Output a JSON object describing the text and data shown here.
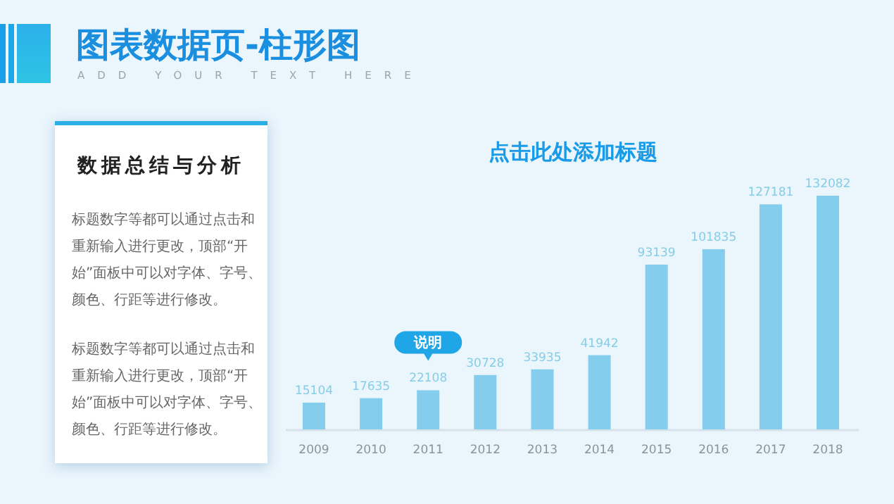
{
  "chart_data": [
    {
      "type": "other",
      "title": "图表数据页-柱形图",
      "subtitle": "ADD YOUR TEXT HERE"
    },
    {
      "type": "other",
      "title": "数据总结与分析",
      "annotations": [
        "标题数字等都可以通过点击和重新输入进行更改，顶部“开始”面板中可以对字体、字号、颜色、行距等进行修改。",
        "标题数字等都可以通过点击和重新输入进行更改，顶部“开始”面板中可以对字体、字号、颜色、行距等进行修改。"
      ]
    },
    {
      "type": "bar",
      "title": "点击此处添加标题",
      "categories": [
        "2009",
        "2010",
        "2011",
        "2012",
        "2013",
        "2014",
        "2015",
        "2016",
        "2017",
        "2018"
      ],
      "values": [
        15104,
        17635,
        22108,
        30728,
        33935,
        41942,
        93139,
        101835,
        127181,
        132082
      ],
      "color": "#84cdec",
      "data_labels": true,
      "annotations": [
        "说明"
      ]
    }
  ]
}
